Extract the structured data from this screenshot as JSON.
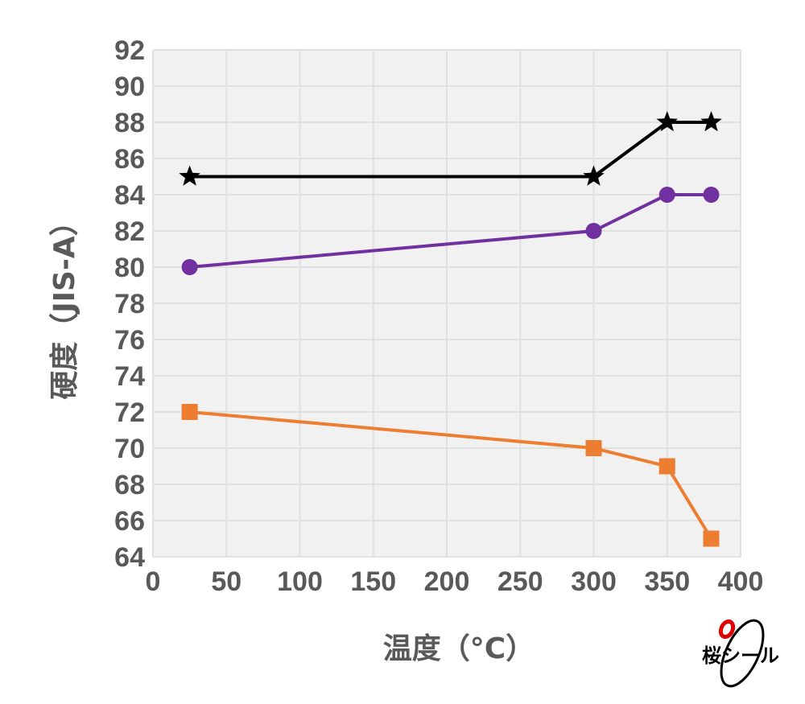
{
  "chart_data": {
    "type": "line",
    "xlabel": "温度（°C）",
    "ylabel": "硬度（JIS-A）",
    "xlim": [
      0,
      400
    ],
    "ylim": [
      64,
      92
    ],
    "xticks": [
      0,
      50,
      100,
      150,
      200,
      250,
      300,
      350,
      400
    ],
    "yticks": [
      64,
      66,
      68,
      70,
      72,
      74,
      76,
      78,
      80,
      82,
      84,
      86,
      88,
      90,
      92
    ],
    "grid": true,
    "x": [
      25,
      300,
      350,
      380
    ],
    "series": [
      {
        "marker": "star",
        "color": "#000000",
        "values": [
          85,
          85,
          88,
          88
        ]
      },
      {
        "marker": "circle",
        "color": "#7030a0",
        "values": [
          80,
          82,
          84,
          84
        ]
      },
      {
        "marker": "square",
        "color": "#ed7d31",
        "values": [
          72,
          70,
          69,
          65
        ]
      }
    ]
  },
  "logo": {
    "text": "桜シール",
    "accent": "#e00000"
  }
}
